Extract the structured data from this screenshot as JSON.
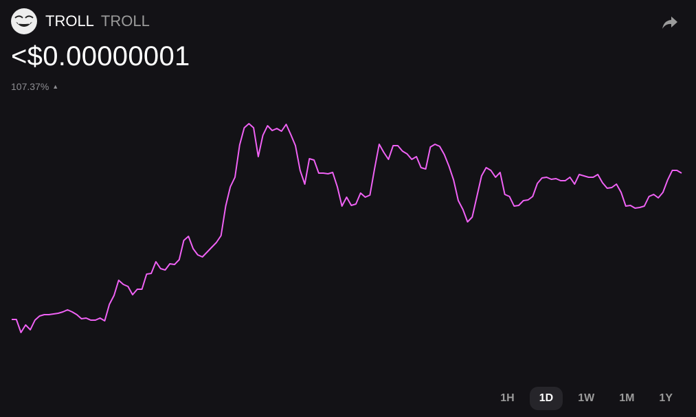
{
  "token": {
    "name": "TROLL",
    "symbol": "TROLL",
    "logo_icon": "troll-face-icon"
  },
  "price": "<$0.00000001",
  "change": {
    "value": "107.37%",
    "direction": "up",
    "icon": "triangle-up-icon"
  },
  "share_icon": "share-arrow-icon",
  "time_ranges": [
    {
      "label": "1H",
      "active": false
    },
    {
      "label": "1D",
      "active": true
    },
    {
      "label": "1W",
      "active": false
    },
    {
      "label": "1M",
      "active": false
    },
    {
      "label": "1Y",
      "active": false
    }
  ],
  "colors": {
    "line": "#f062f5",
    "background": "#131216",
    "muted": "#9b9b9b"
  },
  "chart_data": {
    "type": "line",
    "axes_shown": false,
    "grid": false,
    "ylim": [
      0,
      400
    ],
    "values": [
      35,
      35,
      16,
      27,
      20,
      34,
      40,
      42,
      42,
      43,
      44,
      46,
      49,
      46,
      42,
      36,
      37,
      34,
      34,
      37,
      33,
      57,
      70,
      92,
      86,
      83,
      71,
      79,
      79,
      101,
      102,
      119,
      109,
      107,
      116,
      115,
      122,
      150,
      156,
      138,
      129,
      126,
      133,
      140,
      147,
      157,
      200,
      228,
      242,
      289,
      314,
      320,
      314,
      272,
      303,
      317,
      310,
      313,
      309,
      319,
      304,
      288,
      252,
      232,
      269,
      267,
      248,
      248,
      247,
      249,
      228,
      200,
      213,
      201,
      203,
      219,
      213,
      216,
      254,
      290,
      278,
      268,
      288,
      288,
      280,
      276,
      268,
      272,
      256,
      254,
      286,
      290,
      287,
      275,
      258,
      238,
      208,
      195,
      177,
      184,
      214,
      244,
      256,
      252,
      242,
      249,
      217,
      214,
      200,
      201,
      208,
      209,
      214,
      233,
      241,
      242,
      239,
      240,
      237,
      237,
      242,
      232,
      246,
      244,
      242,
      242,
      246,
      234,
      226,
      227,
      232,
      220,
      200,
      201,
      197,
      198,
      200,
      214,
      217,
      212,
      220,
      238,
      252,
      252,
      248
    ]
  }
}
